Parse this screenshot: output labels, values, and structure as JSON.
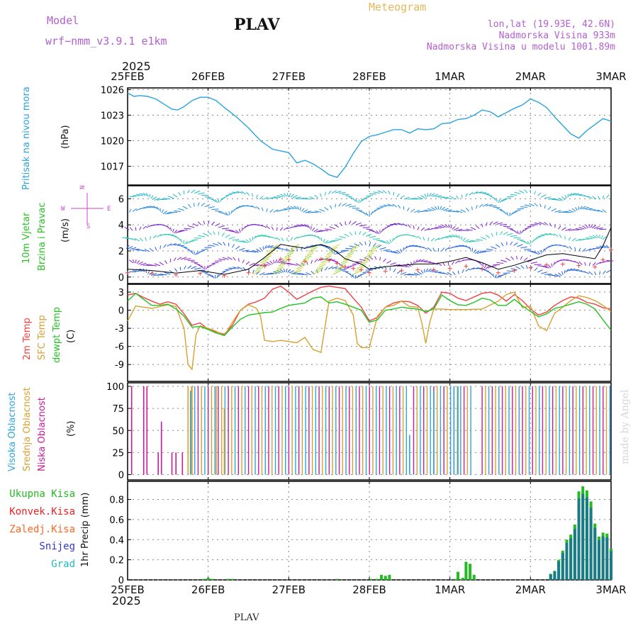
{
  "header": {
    "model_label": "Model",
    "model_name": "wrf−nmm_v3.9.1 e1km",
    "station": "PLAV",
    "meteogram_label": "Meteogram",
    "coords": "lon,lat (19.93E, 42.6N)",
    "elevation": "Nadmorska Visina 933m",
    "elevation_model": "Nadmorska Visina u modelu 1001.89m",
    "year_top": "2025",
    "year_bottom": "2025",
    "footer_station": "PLAV",
    "watermark": "made by Angel"
  },
  "colors": {
    "pressure": "#29a3e0",
    "temp2m": "#f24040",
    "sfc_temp": "#d9a030",
    "dewpt": "#22c322",
    "cloud_high": "#2aa6e6",
    "cloud_mid": "#d9a030",
    "cloud_low": "#cc1a99",
    "total_precip": "#22bb22",
    "conv_precip": "#ee2222",
    "frz_precip": "#ff6622",
    "snow": "#3333dd",
    "graupel": "#22bbbb",
    "wind_axis_label": "#cc44cc"
  },
  "chart_data": [
    {
      "type": "line",
      "panel": "pressure",
      "ylabel_name": "Pritisak na nivou mora",
      "ylabel_unit": "(hPa)",
      "ylim": [
        1014.8,
        1026.2
      ],
      "yticks": [
        1017,
        1020,
        1023,
        1026
      ],
      "xlim": [
        0,
        6
      ],
      "xtick_labels": [
        "25FEB",
        "26FEB",
        "27FEB",
        "28FEB",
        "1MAR",
        "2MAR",
        "3MAR"
      ],
      "grid": true,
      "series": [
        {
          "x": [
            0,
            0.08,
            0.15,
            0.25,
            0.35,
            0.45,
            0.55,
            0.62,
            0.7,
            0.8,
            0.9,
            1.0,
            1.1,
            1.2,
            1.35,
            1.5,
            1.65,
            1.8,
            1.9,
            2.0,
            2.1,
            2.2,
            2.3,
            2.4,
            2.5,
            2.6,
            2.7,
            2.8,
            2.9,
            3.0,
            3.1,
            3.2,
            3.3,
            3.4,
            3.5,
            3.6,
            3.7,
            3.8,
            3.9,
            4.0,
            4.1,
            4.2,
            4.3,
            4.4,
            4.5,
            4.6,
            4.7,
            4.8,
            4.9,
            5.0,
            5.1,
            5.2,
            5.3,
            5.4,
            5.5,
            5.6,
            5.7,
            5.8,
            5.9,
            6.0
          ],
          "y": [
            1025.6,
            1025.2,
            1025.3,
            1025.2,
            1024.9,
            1024.3,
            1023.7,
            1023.6,
            1024.0,
            1024.7,
            1025.1,
            1025.1,
            1024.7,
            1023.9,
            1022.8,
            1021.5,
            1020.0,
            1019.0,
            1018.8,
            1018.6,
            1017.4,
            1017.7,
            1017.3,
            1016.7,
            1016.0,
            1015.7,
            1016.9,
            1018.5,
            1019.9,
            1020.5,
            1020.7,
            1021.0,
            1021.3,
            1021.3,
            1020.9,
            1021.4,
            1021.3,
            1021.4,
            1022.0,
            1022.1,
            1022.5,
            1022.6,
            1023.0,
            1023.6,
            1023.4,
            1022.8,
            1023.3,
            1023.8,
            1024.2,
            1024.9,
            1024.5,
            1023.9,
            1022.8,
            1021.8,
            1020.8,
            1020.3,
            1021.2,
            1021.9,
            1022.6,
            1022.3
          ]
        }
      ]
    },
    {
      "type": "line",
      "panel": "wind",
      "ylabel_name": "10m Vjetar",
      "ylabel_name2": "Brzina i Pravac",
      "ylabel_unit": "(m/s)",
      "compass": {
        "north": "N",
        "west": "W",
        "east": "E",
        "south": "S"
      },
      "ylim": [
        -0.5,
        7.0
      ],
      "yticks": [
        0,
        2,
        4,
        6
      ],
      "xlim": [
        0,
        6
      ],
      "grid": true,
      "series": [
        {
          "name": "speed",
          "x": [
            0,
            0.3,
            0.6,
            0.9,
            1.2,
            1.5,
            1.7,
            1.9,
            2.0,
            2.2,
            2.4,
            2.5,
            2.6,
            2.7,
            2.8,
            2.9,
            3.0,
            3.2,
            3.4,
            3.6,
            3.8,
            4.0,
            4.2,
            4.4,
            4.6,
            4.8,
            5.0,
            5.2,
            5.4,
            5.6,
            5.8,
            5.9,
            6.0
          ],
          "y": [
            0.6,
            0.5,
            0.3,
            0.5,
            0.2,
            0.6,
            1.5,
            2.5,
            2.4,
            2.2,
            2.5,
            2.3,
            1.9,
            1.4,
            1.2,
            1.0,
            0.6,
            0.8,
            0.9,
            1.0,
            1.0,
            1.2,
            1.5,
            1.1,
            0.6,
            0.9,
            1.3,
            1.7,
            1.8,
            1.6,
            1.4,
            2.4,
            3.8
          ]
        }
      ],
      "vector_rows_y": [
        0.4,
        1.1,
        2.2,
        3.0,
        3.8,
        5.2,
        6.2
      ],
      "vector_row_colors": [
        "#1e5fd8",
        "#8a1fd1",
        "#2266ee",
        "#28c8b0",
        "#7a22d0",
        "#1e88e0",
        "#22b8c8"
      ]
    },
    {
      "type": "line",
      "panel": "temperature",
      "ylabel_names": [
        "2m Temp",
        "SFC Temp",
        "dewpt Temp"
      ],
      "ylabel_unit": "(C)",
      "ylim": [
        -11.8,
        4.3
      ],
      "yticks": [
        -9,
        -6,
        -3,
        0,
        3
      ],
      "xlim": [
        0,
        6
      ],
      "grid": true,
      "series": [
        {
          "name": "2m Temp",
          "x": [
            0,
            0.1,
            0.2,
            0.3,
            0.4,
            0.5,
            0.6,
            0.7,
            0.8,
            0.9,
            1.0,
            1.1,
            1.2,
            1.3,
            1.4,
            1.5,
            1.6,
            1.7,
            1.8,
            1.9,
            2.0,
            2.1,
            2.2,
            2.3,
            2.4,
            2.5,
            2.6,
            2.7,
            2.8,
            2.9,
            3.0,
            3.1,
            3.2,
            3.3,
            3.4,
            3.5,
            3.6,
            3.7,
            3.8,
            3.9,
            4.0,
            4.1,
            4.2,
            4.3,
            4.4,
            4.5,
            4.6,
            4.7,
            4.8,
            4.9,
            5.0,
            5.1,
            5.2,
            5.3,
            5.4,
            5.5,
            5.6,
            5.7,
            5.8,
            5.9,
            6.0
          ],
          "y": [
            2.5,
            2.8,
            2.1,
            1.5,
            1.0,
            1.4,
            1.0,
            -0.6,
            -2.5,
            -2.1,
            -3.2,
            -3.6,
            -4.0,
            -2.5,
            0.0,
            1.0,
            1.4,
            2.0,
            3.5,
            4.0,
            3.0,
            1.8,
            2.5,
            3.2,
            3.8,
            4.0,
            3.8,
            3.6,
            2.0,
            0.5,
            -1.8,
            -1.2,
            0.5,
            1.2,
            1.5,
            1.4,
            0.8,
            -0.5,
            0.5,
            3.0,
            2.8,
            2.0,
            1.6,
            2.2,
            2.8,
            3.0,
            2.5,
            1.5,
            2.6,
            1.6,
            0.2,
            -0.8,
            -0.3,
            0.8,
            1.6,
            2.2,
            2.0,
            1.3,
            1.0,
            0.4,
            0.2
          ]
        },
        {
          "name": "SFC Temp",
          "x": [
            0,
            0.1,
            0.2,
            0.3,
            0.4,
            0.5,
            0.6,
            0.7,
            0.75,
            0.8,
            0.85,
            0.9,
            1.0,
            1.1,
            1.2,
            1.3,
            1.4,
            1.5,
            1.6,
            1.65,
            1.7,
            1.8,
            1.9,
            2.0,
            2.1,
            2.2,
            2.3,
            2.4,
            2.5,
            2.6,
            2.7,
            2.8,
            2.85,
            2.9,
            3.0,
            3.1,
            3.2,
            3.3,
            3.4,
            3.5,
            3.6,
            3.65,
            3.7,
            3.75,
            3.8,
            3.9,
            4.0,
            4.2,
            4.4,
            4.6,
            4.7,
            4.8,
            4.9,
            5.0,
            5.1,
            5.2,
            5.3,
            5.4,
            5.5,
            5.6,
            5.7,
            5.8,
            5.9,
            6.0
          ],
          "y": [
            -1.8,
            0.7,
            0.5,
            0.3,
            0.6,
            0.9,
            0.6,
            -3.0,
            -9.0,
            -9.8,
            -4.0,
            -2.6,
            -3.0,
            -3.5,
            -4.2,
            -2.0,
            0.0,
            0.9,
            0.3,
            -1.0,
            -5.0,
            -5.2,
            -5.0,
            -5.2,
            -5.4,
            -4.5,
            -6.5,
            -7.0,
            1.5,
            2.0,
            1.6,
            -0.8,
            -5.5,
            -6.2,
            -6.2,
            -1.0,
            0.5,
            0.8,
            1.5,
            0.6,
            0.5,
            -2.0,
            -5.5,
            -2.0,
            0.2,
            0.2,
            0.1,
            0.1,
            0.2,
            1.5,
            2.6,
            3.0,
            0.4,
            0.7,
            -2.6,
            -3.4,
            -0.5,
            0.5,
            1.6,
            2.4,
            2.1,
            1.6,
            0.8,
            -0.2
          ]
        },
        {
          "name": "dewpt Temp",
          "x": [
            0,
            0.1,
            0.2,
            0.3,
            0.4,
            0.5,
            0.6,
            0.7,
            0.8,
            0.9,
            1.0,
            1.1,
            1.2,
            1.3,
            1.4,
            1.5,
            1.6,
            1.7,
            1.8,
            1.9,
            2.0,
            2.1,
            2.2,
            2.3,
            2.4,
            2.5,
            2.6,
            2.7,
            2.8,
            2.9,
            3.0,
            3.1,
            3.2,
            3.3,
            3.4,
            3.5,
            3.6,
            3.7,
            3.8,
            3.9,
            4.0,
            4.1,
            4.2,
            4.3,
            4.4,
            4.5,
            4.6,
            4.7,
            4.8,
            4.9,
            5.0,
            5.1,
            5.2,
            5.3,
            5.4,
            5.5,
            5.6,
            5.7,
            5.8,
            5.9,
            6.0
          ],
          "y": [
            1.5,
            2.8,
            1.8,
            0.8,
            0.8,
            1.0,
            0.2,
            -1.0,
            -2.8,
            -2.7,
            -3.2,
            -3.8,
            -4.2,
            -2.8,
            -1.5,
            -0.8,
            -0.6,
            -0.4,
            -0.3,
            0.3,
            0.8,
            1.0,
            1.2,
            2.0,
            2.2,
            1.2,
            1.4,
            1.0,
            0.5,
            0.0,
            -2.0,
            -1.6,
            0.0,
            0.2,
            0.5,
            0.3,
            0.2,
            -0.2,
            0.2,
            2.5,
            1.6,
            0.9,
            0.8,
            1.3,
            2.0,
            1.7,
            0.8,
            0.8,
            1.8,
            0.7,
            -0.2,
            -1.1,
            -0.6,
            0.3,
            0.6,
            1.0,
            1.4,
            1.0,
            0.2,
            -1.6,
            -3.3
          ]
        }
      ]
    },
    {
      "type": "bar",
      "panel": "clouds",
      "ylabel_names": [
        "Visoka Oblacnost",
        "Srednja Oblacnost",
        "Niska Oblacnost"
      ],
      "ylabel_unit": "(%)",
      "ylim": [
        -6,
        104
      ],
      "yticks": [
        0,
        25,
        50,
        75,
        100
      ],
      "xlim": [
        0,
        6
      ],
      "grid": true,
      "series": [
        {
          "name": "Niska Oblacnost",
          "x": [
            0.05,
            0.2,
            0.24,
            0.38,
            0.42,
            0.55,
            0.6,
            0.68
          ],
          "values": [
            100,
            100,
            100,
            25,
            60,
            25,
            25,
            25
          ]
        },
        {
          "name": "Srednja Oblacnost",
          "x": [
            0.75,
            0.8,
            1.1,
            1.2
          ],
          "values": [
            100,
            100,
            100,
            75
          ]
        },
        {
          "name": "Visoka Oblacnost",
          "x": [
            0.78,
            3.5,
            3.8,
            4.05,
            4.1
          ],
          "values": [
            95,
            45,
            95,
            100,
            100
          ]
        }
      ],
      "dense_spans": [
        [
          0.75,
          3.5
        ],
        [
          3.55,
          4.3
        ],
        [
          4.4,
          6.0
        ]
      ]
    },
    {
      "type": "bar",
      "panel": "precip",
      "ylabel": "1hr Precip (mm)",
      "legend": [
        "Ukupna Kisa",
        "Konvek.Kisa",
        "Zaledj.Kisa",
        "Snijeg",
        "Grad"
      ],
      "ylim": [
        0,
        0.98
      ],
      "yticks": [
        0,
        0.2,
        0.4,
        0.6,
        0.8
      ],
      "xlim": [
        0,
        6
      ],
      "grid": true,
      "series": [
        {
          "name": "Ukupna Kisa",
          "x": [
            0.95,
            1.0,
            1.05,
            1.25,
            1.3,
            2.6,
            3.02,
            3.1,
            3.15,
            3.2,
            3.25,
            4.06,
            4.1,
            4.16,
            4.2,
            4.25,
            4.3,
            5.25,
            5.3,
            5.35,
            5.4,
            5.45,
            5.5,
            5.55,
            5.6,
            5.65,
            5.7,
            5.75,
            5.8,
            5.85,
            5.9,
            5.95,
            6.0
          ],
          "values": [
            0.01,
            0.02,
            0.01,
            0.01,
            0.01,
            0.01,
            0.01,
            0.01,
            0.05,
            0.04,
            0.05,
            0.01,
            0.08,
            0.02,
            0.18,
            0.16,
            0.05,
            0.06,
            0.09,
            0.2,
            0.29,
            0.4,
            0.45,
            0.55,
            0.88,
            0.93,
            0.89,
            0.78,
            0.56,
            0.43,
            0.47,
            0.46,
            0.31
          ]
        }
      ]
    }
  ]
}
